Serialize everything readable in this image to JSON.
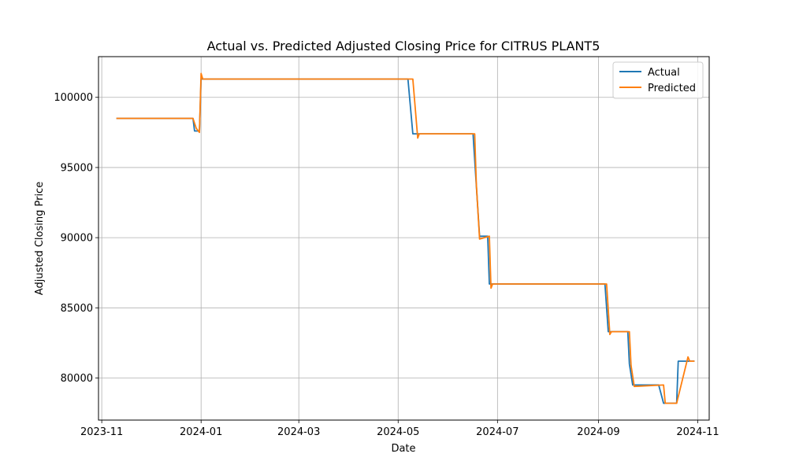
{
  "chart_data": {
    "type": "line",
    "title": "Actual vs. Predicted Adjusted Closing Price for CITRUS PLANT5",
    "xlabel": "Date",
    "ylabel": "Adjusted Closing Price",
    "xlim": [
      "2023-10-30",
      "2024-11-08"
    ],
    "ylim": [
      77000,
      102900
    ],
    "x_ticks": [
      "2023-11-01",
      "2024-01-01",
      "2024-03-01",
      "2024-05-01",
      "2024-07-01",
      "2024-09-01",
      "2024-11-01"
    ],
    "x_tick_labels": [
      "2023-11",
      "2024-01",
      "2024-03",
      "2024-05",
      "2024-07",
      "2024-09",
      "2024-11"
    ],
    "y_ticks": [
      80000,
      85000,
      90000,
      95000,
      100000
    ],
    "y_tick_labels": [
      "80000",
      "85000",
      "90000",
      "95000",
      "100000"
    ],
    "grid": true,
    "legend_position": "top-right",
    "series": [
      {
        "name": "Actual",
        "color": "#1f77b4",
        "points": [
          [
            "2023-11-10",
            98500
          ],
          [
            "2023-12-27",
            98500
          ],
          [
            "2023-12-28",
            97600
          ],
          [
            "2023-12-31",
            97600
          ],
          [
            "2024-01-01",
            101300
          ],
          [
            "2024-05-07",
            101300
          ],
          [
            "2024-05-10",
            97400
          ],
          [
            "2024-06-16",
            97400
          ],
          [
            "2024-06-18",
            93700
          ],
          [
            "2024-06-20",
            90100
          ],
          [
            "2024-06-25",
            90100
          ],
          [
            "2024-06-26",
            86700
          ],
          [
            "2024-09-05",
            86700
          ],
          [
            "2024-09-07",
            83300
          ],
          [
            "2024-09-19",
            83300
          ],
          [
            "2024-09-20",
            81000
          ],
          [
            "2024-09-22",
            79500
          ],
          [
            "2024-10-08",
            79500
          ],
          [
            "2024-10-11",
            78200
          ],
          [
            "2024-10-19",
            78200
          ],
          [
            "2024-10-20",
            81200
          ],
          [
            "2024-10-30",
            81200
          ]
        ]
      },
      {
        "name": "Predicted",
        "color": "#ff7f0e",
        "points": [
          [
            "2023-11-10",
            98500
          ],
          [
            "2023-12-27",
            98500
          ],
          [
            "2023-12-29",
            97800
          ],
          [
            "2023-12-31",
            97500
          ],
          [
            "2024-01-01",
            101700
          ],
          [
            "2024-01-02",
            101300
          ],
          [
            "2024-05-10",
            101300
          ],
          [
            "2024-05-13",
            97100
          ],
          [
            "2024-05-14",
            97400
          ],
          [
            "2024-06-17",
            97400
          ],
          [
            "2024-06-18",
            93800
          ],
          [
            "2024-06-20",
            89900
          ],
          [
            "2024-06-26",
            90100
          ],
          [
            "2024-06-27",
            86400
          ],
          [
            "2024-06-28",
            86700
          ],
          [
            "2024-09-06",
            86700
          ],
          [
            "2024-09-08",
            83100
          ],
          [
            "2024-09-09",
            83300
          ],
          [
            "2024-09-20",
            83300
          ],
          [
            "2024-09-21",
            80900
          ],
          [
            "2024-09-23",
            79400
          ],
          [
            "2024-10-11",
            79500
          ],
          [
            "2024-10-12",
            78200
          ],
          [
            "2024-10-19",
            78200
          ],
          [
            "2024-10-26",
            81500
          ],
          [
            "2024-10-27",
            81200
          ],
          [
            "2024-10-30",
            81200
          ]
        ]
      }
    ]
  }
}
